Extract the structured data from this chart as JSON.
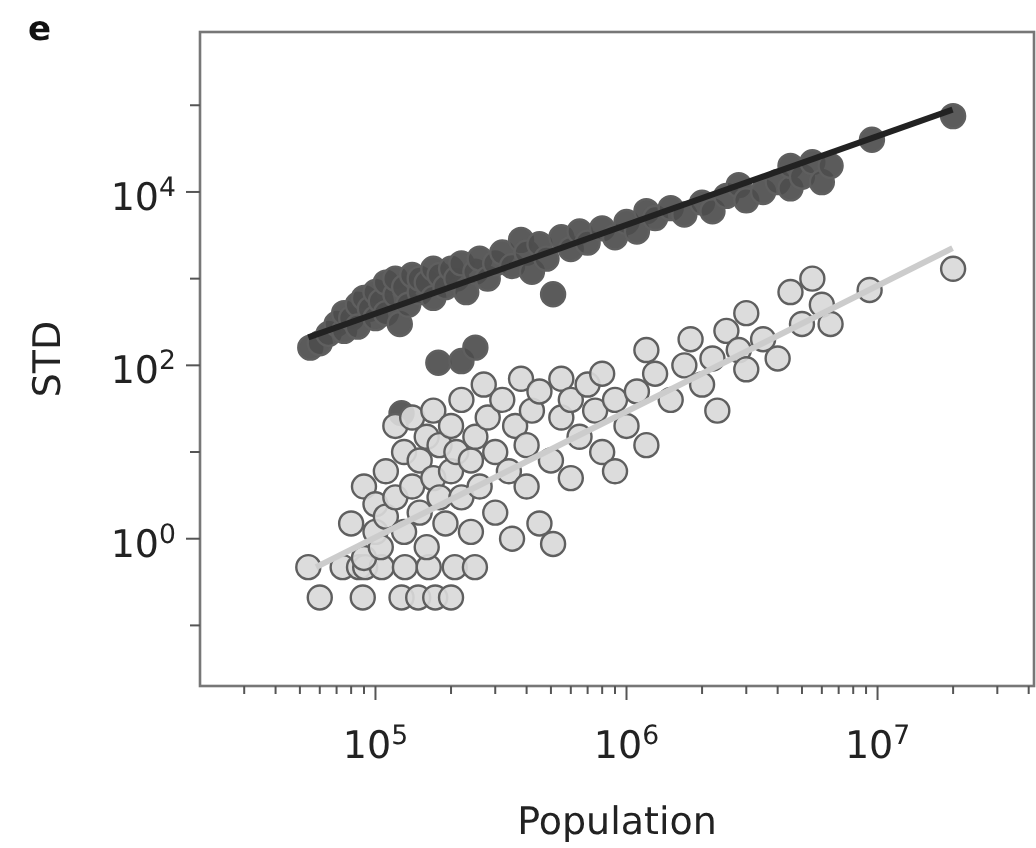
{
  "chart_data": {
    "type": "scatter",
    "title": "e",
    "xlabel": "Population",
    "ylabel": "STD",
    "log": "xy",
    "grid": false,
    "marker": "circle",
    "xlim": [
      20000,
      42000000
    ],
    "ylim": [
      0.02,
      700000
    ],
    "xticks": [
      {
        "value": 30000,
        "label": null
      },
      {
        "value": 40000,
        "label": null
      },
      {
        "value": 50000,
        "label": null
      },
      {
        "value": 60000,
        "label": null
      },
      {
        "value": 70000,
        "label": null
      },
      {
        "value": 80000,
        "label": null
      },
      {
        "value": 90000,
        "label": null
      },
      {
        "value": 100000,
        "label": "10$^{5}$"
      },
      {
        "value": 200000,
        "label": null
      },
      {
        "value": 300000,
        "label": null
      },
      {
        "value": 400000,
        "label": null
      },
      {
        "value": 500000,
        "label": null
      },
      {
        "value": 600000,
        "label": null
      },
      {
        "value": 700000,
        "label": null
      },
      {
        "value": 800000,
        "label": null
      },
      {
        "value": 900000,
        "label": null
      },
      {
        "value": 1000000,
        "label": "10$^{6}$"
      },
      {
        "value": 2000000,
        "label": null
      },
      {
        "value": 3000000,
        "label": null
      },
      {
        "value": 4000000,
        "label": null
      },
      {
        "value": 5000000,
        "label": null
      },
      {
        "value": 6000000,
        "label": null
      },
      {
        "value": 7000000,
        "label": null
      },
      {
        "value": 8000000,
        "label": null
      },
      {
        "value": 9000000,
        "label": null
      },
      {
        "value": 10000000,
        "label": "10$^{7}$"
      },
      {
        "value": 20000000,
        "label": null
      },
      {
        "value": 30000000,
        "label": null
      },
      {
        "value": 40000000,
        "label": null
      }
    ],
    "yticks": [
      {
        "value": 0.1,
        "label": null
      },
      {
        "value": 1,
        "label": "10$^{0}$"
      },
      {
        "value": 10,
        "label": null
      },
      {
        "value": 100,
        "label": "10$^{2}$"
      },
      {
        "value": 1000,
        "label": null
      },
      {
        "value": 10000,
        "label": "10$^{4}$"
      },
      {
        "value": 100000,
        "label": null
      }
    ],
    "series": [
      {
        "color": "#4d4d4d",
        "x": [
          55000,
          60000,
          65000,
          70000,
          75000,
          75000,
          80000,
          85000,
          85000,
          90000,
          95000,
          100000,
          100000,
          105000,
          110000,
          110000,
          120000,
          120000,
          125000,
          130000,
          135000,
          140000,
          150000,
          150000,
          160000,
          170000,
          170000,
          180000,
          190000,
          200000,
          210000,
          220000,
          230000,
          250000,
          260000,
          280000,
          300000,
          320000,
          350000,
          380000,
          400000,
          420000,
          450000,
          480000,
          510000,
          550000,
          600000,
          650000,
          700000,
          800000,
          900000,
          1000000,
          1100000,
          1200000,
          1300000,
          1500000,
          1700000,
          2000000,
          2200000,
          2500000,
          2800000,
          3000000,
          3500000,
          4000000,
          4500000,
          4500000,
          5000000,
          5500000,
          6000000,
          6500000,
          9500000,
          20000000,
          178000,
          220000,
          250000,
          127000
        ],
        "values": [
          160,
          180,
          230,
          300,
          250,
          400,
          350,
          500,
          280,
          600,
          450,
          700,
          350,
          550,
          900,
          400,
          650,
          1000,
          300,
          800,
          500,
          1100,
          700,
          1000,
          900,
          1300,
          600,
          1100,
          800,
          1300,
          1000,
          1500,
          700,
          1200,
          1700,
          1000,
          1500,
          2000,
          1400,
          2800,
          2000,
          1200,
          2500,
          1700,
          660,
          3000,
          2200,
          3500,
          2600,
          3800,
          3000,
          4500,
          3500,
          6000,
          5000,
          6500,
          5500,
          7500,
          6000,
          9000,
          12000,
          8000,
          10000,
          13000,
          11000,
          20000,
          15000,
          22000,
          13000,
          20000,
          40000,
          75000,
          107,
          112,
          160,
          28
        ]
      },
      {
        "color": "#d9d9d9",
        "x": [
          60000,
          89000,
          127000,
          148000,
          173000,
          200000,
          54000,
          74000,
          86000,
          91000,
          106000,
          131000,
          163000,
          207000,
          249000,
          90000,
          100000,
          105000,
          80000,
          90000,
          100000,
          110000,
          110000,
          120000,
          120000,
          130000,
          130000,
          140000,
          140000,
          150000,
          150000,
          160000,
          160000,
          170000,
          170000,
          180000,
          180000,
          190000,
          200000,
          200000,
          210000,
          220000,
          220000,
          240000,
          240000,
          250000,
          260000,
          270000,
          280000,
          300000,
          300000,
          320000,
          340000,
          350000,
          360000,
          380000,
          400000,
          400000,
          420000,
          450000,
          450000,
          510000,
          500000,
          550000,
          550000,
          600000,
          600000,
          650000,
          700000,
          750000,
          800000,
          800000,
          900000,
          900000,
          1000000,
          1100000,
          1200000,
          1200000,
          1300000,
          1500000,
          1700000,
          1800000,
          2000000,
          2200000,
          2300000,
          2500000,
          2800000,
          3000000,
          3000000,
          3500000,
          4000000,
          4500000,
          5000000,
          5500000,
          6000000,
          6500000,
          9300000,
          20000000
        ],
        "values": [
          0.21,
          0.21,
          0.21,
          0.21,
          0.21,
          0.21,
          0.47,
          0.47,
          0.47,
          0.47,
          0.47,
          0.47,
          0.47,
          0.47,
          0.47,
          0.6,
          1.2,
          0.8,
          1.5,
          4,
          2.5,
          1.8,
          6,
          3,
          20,
          1.2,
          10,
          4,
          25,
          2,
          8,
          15,
          0.8,
          5,
          30,
          3,
          12,
          1.5,
          6,
          20,
          10,
          3,
          40,
          1.2,
          8,
          15,
          4,
          60,
          25,
          2,
          10,
          40,
          6,
          1,
          20,
          70,
          12,
          4,
          30,
          1.5,
          50,
          0.87,
          8,
          25,
          70,
          5,
          40,
          15,
          60,
          30,
          10,
          80,
          40,
          6,
          20,
          50,
          150,
          12,
          80,
          40,
          100,
          200,
          60,
          120,
          30,
          250,
          150,
          400,
          90,
          200,
          120,
          700,
          300,
          1000,
          500,
          300,
          740,
          1300
        ]
      },
      {
        "type": "line",
        "marker": "none",
        "color": "#222222",
        "x": [
          54000,
          19900000
        ],
        "values": [
          210,
          89000
        ]
      },
      {
        "type": "line",
        "marker": "none",
        "color": "#cccccc",
        "x": [
          58000,
          19900000
        ],
        "values": [
          0.47,
          2250
        ]
      }
    ]
  }
}
